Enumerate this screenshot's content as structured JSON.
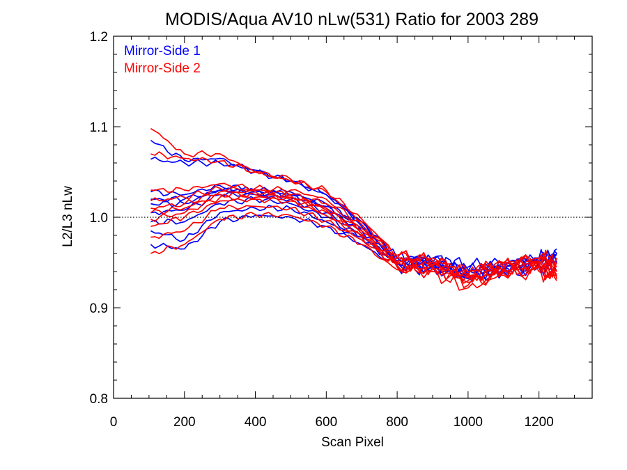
{
  "chart_data": {
    "type": "line",
    "title": "MODIS/Aqua AV10 nLw(531) Ratio for 2003 289",
    "xlabel": "Scan Pixel",
    "ylabel": "L2/L3 nLw",
    "xlim": [
      0,
      1350
    ],
    "ylim": [
      0.8,
      1.2
    ],
    "x_ticks": [
      0,
      200,
      400,
      600,
      800,
      1000,
      1200
    ],
    "x_tick_labels": [
      "0",
      "200",
      "400",
      "600",
      "800",
      "1000",
      "1200"
    ],
    "y_ticks": [
      0.8,
      0.9,
      1.0,
      1.1,
      1.2
    ],
    "y_tick_labels": [
      "0.8",
      "0.9",
      "1.0",
      "1.1",
      "1.2"
    ],
    "reference_line": {
      "y": 1.0,
      "style": "dotted"
    },
    "grid": false,
    "legend_position": "top-left",
    "legend": [
      {
        "label": "Mirror-Side 1",
        "color": "#0000ff"
      },
      {
        "label": "Mirror-Side 2",
        "color": "#ff0000"
      }
    ],
    "x": [
      105,
      200,
      300,
      400,
      500,
      600,
      700,
      800,
      900,
      1000,
      1100,
      1200,
      1250
    ],
    "series": [
      {
        "group": 1,
        "color": "#0000ff",
        "values": [
          1.085,
          1.063,
          1.065,
          1.05,
          1.04,
          1.025,
          0.995,
          0.955,
          0.95,
          0.935,
          0.945,
          0.95,
          0.965
        ]
      },
      {
        "group": 1,
        "color": "#0000ff",
        "values": [
          1.064,
          1.06,
          1.06,
          1.052,
          1.04,
          1.025,
          0.995,
          0.955,
          0.95,
          0.938,
          0.945,
          0.955,
          0.96
        ]
      },
      {
        "group": 1,
        "color": "#0000ff",
        "values": [
          1.028,
          1.025,
          1.035,
          1.03,
          1.025,
          1.015,
          0.99,
          0.95,
          0.95,
          0.94,
          0.945,
          0.95,
          0.955
        ]
      },
      {
        "group": 1,
        "color": "#0000ff",
        "values": [
          1.02,
          1.02,
          1.03,
          1.028,
          1.025,
          1.01,
          0.985,
          0.955,
          0.955,
          0.945,
          0.95,
          0.955,
          0.96
        ]
      },
      {
        "group": 1,
        "color": "#0000ff",
        "values": [
          1.005,
          1.008,
          1.025,
          1.025,
          1.02,
          1.005,
          0.98,
          0.95,
          0.945,
          0.935,
          0.94,
          0.95,
          0.95
        ]
      },
      {
        "group": 1,
        "color": "#0000ff",
        "values": [
          0.995,
          0.995,
          1.015,
          1.02,
          1.015,
          1.0,
          0.978,
          0.948,
          0.945,
          0.938,
          0.942,
          0.945,
          0.945
        ]
      },
      {
        "group": 1,
        "color": "#0000ff",
        "values": [
          0.985,
          0.975,
          1.005,
          1.01,
          1.01,
          0.995,
          0.975,
          0.95,
          0.95,
          0.94,
          0.945,
          0.95,
          0.95
        ]
      },
      {
        "group": 1,
        "color": "#0000ff",
        "values": [
          0.97,
          0.965,
          0.995,
          1.002,
          1.0,
          0.99,
          0.97,
          0.945,
          0.945,
          0.932,
          0.94,
          0.945,
          0.94
        ]
      },
      {
        "group": 1,
        "color": "#0000ff",
        "values": [
          1.015,
          1.015,
          1.03,
          1.03,
          1.028,
          1.012,
          0.988,
          0.952,
          0.952,
          0.942,
          0.948,
          0.952,
          0.958
        ]
      },
      {
        "group": 2,
        "color": "#ff0000",
        "values": [
          1.098,
          1.07,
          1.07,
          1.05,
          1.042,
          1.028,
          0.995,
          0.955,
          0.955,
          0.935,
          0.95,
          0.955,
          0.955
        ]
      },
      {
        "group": 2,
        "color": "#ff0000",
        "values": [
          1.07,
          1.065,
          1.062,
          1.05,
          1.04,
          1.03,
          0.998,
          0.958,
          0.95,
          0.94,
          0.948,
          0.952,
          0.95
        ]
      },
      {
        "group": 2,
        "color": "#ff0000",
        "values": [
          1.03,
          1.03,
          1.037,
          1.032,
          1.03,
          1.02,
          0.992,
          0.955,
          0.952,
          0.938,
          0.95,
          0.955,
          0.945
        ]
      },
      {
        "group": 2,
        "color": "#ff0000",
        "values": [
          1.018,
          1.022,
          1.032,
          1.03,
          1.025,
          1.015,
          0.988,
          0.95,
          0.948,
          0.935,
          0.945,
          0.95,
          0.942
        ]
      },
      {
        "group": 2,
        "color": "#ff0000",
        "values": [
          1.005,
          1.01,
          1.025,
          1.025,
          1.022,
          1.008,
          0.982,
          0.948,
          0.945,
          0.93,
          0.942,
          0.948,
          0.938
        ]
      },
      {
        "group": 2,
        "color": "#ff0000",
        "values": [
          0.99,
          1.0,
          1.018,
          1.02,
          1.018,
          1.002,
          0.978,
          0.945,
          0.942,
          0.925,
          0.94,
          0.945,
          0.935
        ]
      },
      {
        "group": 2,
        "color": "#ff0000",
        "values": [
          0.978,
          0.985,
          1.01,
          1.012,
          1.01,
          0.996,
          0.975,
          0.946,
          0.944,
          0.928,
          0.938,
          0.944,
          0.932
        ]
      },
      {
        "group": 2,
        "color": "#ff0000",
        "values": [
          0.96,
          0.97,
          0.998,
          1.003,
          1.002,
          0.99,
          0.97,
          0.942,
          0.94,
          0.922,
          0.936,
          0.94,
          0.93
        ]
      },
      {
        "group": 2,
        "color": "#ff0000",
        "values": [
          1.01,
          1.015,
          1.028,
          1.028,
          1.024,
          1.01,
          0.985,
          0.95,
          0.948,
          0.936,
          0.944,
          0.95,
          0.946
        ]
      },
      {
        "group": 2,
        "color": "#ff0000",
        "values": [
          0.998,
          1.005,
          1.022,
          1.022,
          1.02,
          1.006,
          0.98,
          0.947,
          0.946,
          0.933,
          0.942,
          0.947,
          0.94
        ]
      }
    ]
  }
}
